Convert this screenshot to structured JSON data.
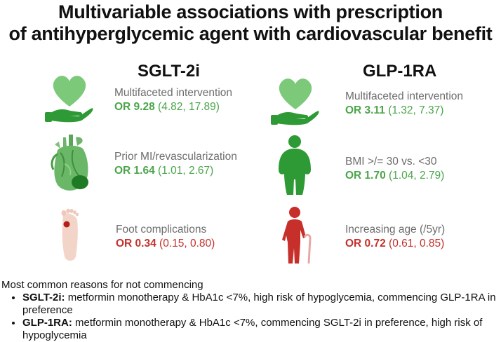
{
  "title": {
    "line1": "Multivariable associations with prescription",
    "line2": "of antihyperglycemic agent with cardiovascular benefit"
  },
  "columns": {
    "sglt2i": {
      "heading": "SGLT-2i",
      "items": [
        {
          "name": "Multifaceted intervention",
          "or_label": "OR 9.28",
          "ci": "(4.82, 17.89)",
          "icon": "heart-in-hand-icon"
        },
        {
          "name": "Prior MI/revascularization",
          "or_label": "OR 1.64",
          "ci": "(1.01, 2.67)",
          "icon": "anatomical-heart-icon"
        },
        {
          "name": "Foot complications",
          "or_label": "OR 0.34",
          "ci": "(0.15, 0.80)",
          "icon": "foot-ulcer-icon"
        }
      ]
    },
    "glp1ra": {
      "heading": "GLP-1RA",
      "items": [
        {
          "name": "Multifaceted intervention",
          "or_label": "OR 3.11",
          "ci": "(1.32, 7.37)",
          "icon": "heart-in-hand-icon"
        },
        {
          "name": "BMI >/= 30 vs. <30",
          "or_label": "OR 1.70",
          "ci": "(1.04, 2.79)",
          "icon": "obese-person-icon"
        },
        {
          "name": "Increasing age (/5yr)",
          "or_label": "OR 0.72",
          "ci": "(0.61, 0.85)",
          "icon": "elderly-person-cane-icon"
        }
      ]
    }
  },
  "colors": {
    "positive": "#4aa54a",
    "negative": "#c4302b",
    "label_gray": "#6d6d6d"
  },
  "reasons": {
    "heading": "Most common reasons for not commencing",
    "items": [
      {
        "term": "SGLT-2i:",
        "text": " metformin monotherapy & HbA1c <7%, high risk of hypoglycemia, commencing GLP-1RA in preference"
      },
      {
        "term": "GLP-1RA:",
        "text": " metformin monotherapy & HbA1c <7%, commencing SGLT-2i in preference, high risk of hypoglycemia"
      }
    ]
  }
}
